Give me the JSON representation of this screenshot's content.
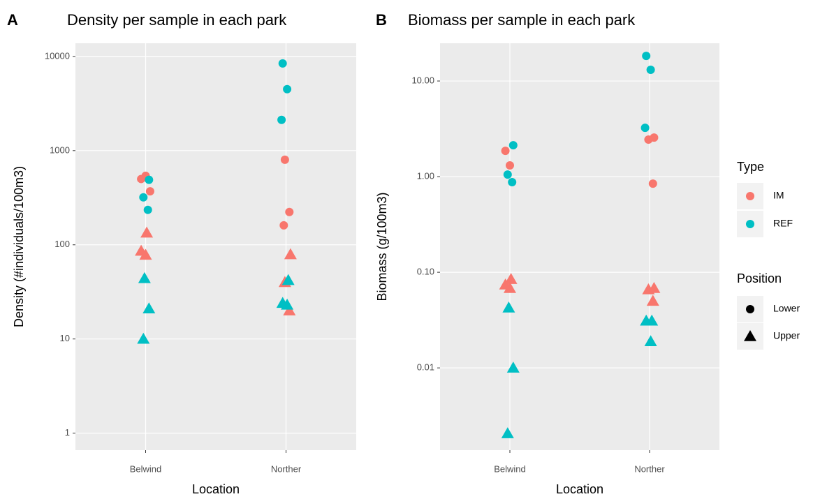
{
  "chart_data": [
    {
      "type": "scatter",
      "tag": "A",
      "title": "Density per sample in each park",
      "x_label": "Location",
      "y_label": "Density (#individuals/100m3)",
      "categories": [
        "Belwind",
        "Norther"
      ],
      "log_y": true,
      "grid": true,
      "ylim": [
        0.66,
        13800
      ],
      "yticks": [
        1,
        10,
        100,
        1000,
        10000
      ],
      "series": [
        {
          "type": "IM",
          "position": "Lower",
          "x": [
            "Belwind",
            "Belwind",
            "Belwind",
            "Norther",
            "Norther",
            "Norther"
          ],
          "values": [
            500,
            540,
            370,
            800,
            223,
            161
          ]
        },
        {
          "type": "REF",
          "position": "Lower",
          "x": [
            "Belwind",
            "Belwind",
            "Belwind",
            "Norther",
            "Norther",
            "Norther"
          ],
          "values": [
            490,
            319,
            235,
            8430,
            4490,
            2120
          ]
        },
        {
          "type": "IM",
          "position": "Upper",
          "x": [
            "Belwind",
            "Belwind",
            "Belwind",
            "Norther",
            "Norther",
            "Norther"
          ],
          "values": [
            134,
            86,
            78,
            79,
            40,
            20
          ]
        },
        {
          "type": "REF",
          "position": "Upper",
          "x": [
            "Belwind",
            "Belwind",
            "Belwind",
            "Norther",
            "Norther",
            "Norther"
          ],
          "values": [
            44,
            21,
            10,
            42,
            24,
            23
          ]
        }
      ]
    },
    {
      "type": "scatter",
      "tag": "B",
      "title": "Biomass per sample in each park",
      "x_label": "Location",
      "y_label": "Biomass (g/100m3)",
      "categories": [
        "Belwind",
        "Norther"
      ],
      "log_y": true,
      "grid": true,
      "ylim": [
        0.00138,
        24.8
      ],
      "yticks": [
        0.01,
        {
          "value": 0.1,
          "label": "0.10"
        },
        {
          "value": 1,
          "label": "1.00"
        },
        {
          "value": 10,
          "label": "10.00"
        }
      ],
      "series": [
        {
          "type": "IM",
          "position": "Lower",
          "x": [
            "Belwind",
            "Belwind",
            "Norther",
            "Norther",
            "Norther"
          ],
          "values": [
            1.86,
            1.31,
            2.56,
            2.44,
            0.845
          ]
        },
        {
          "type": "REF",
          "position": "Lower",
          "x": [
            "Belwind",
            "Belwind",
            "Belwind",
            "Norther",
            "Norther",
            "Norther"
          ],
          "values": [
            2.13,
            1.05,
            0.875,
            18.3,
            13.1,
            3.24
          ]
        },
        {
          "type": "IM",
          "position": "Upper",
          "x": [
            "Belwind",
            "Belwind",
            "Belwind",
            "Norther",
            "Norther",
            "Norther"
          ],
          "values": [
            0.0845,
            0.074,
            0.068,
            0.068,
            0.066,
            0.05
          ]
        },
        {
          "type": "REF",
          "position": "Upper",
          "x": [
            "Belwind",
            "Belwind",
            "Belwind",
            "Norther",
            "Norther",
            "Norther"
          ],
          "values": [
            0.0425,
            0.01,
            0.00206,
            0.031,
            0.031,
            0.0189
          ]
        }
      ]
    }
  ],
  "legend": {
    "type_title": "Type",
    "position_title": "Position",
    "types": [
      {
        "name": "IM",
        "color": "#F8766D"
      },
      {
        "name": "REF",
        "color": "#00BFC4"
      }
    ],
    "positions": [
      {
        "name": "Lower",
        "shape": "circle"
      },
      {
        "name": "Upper",
        "shape": "triangle"
      }
    ]
  }
}
